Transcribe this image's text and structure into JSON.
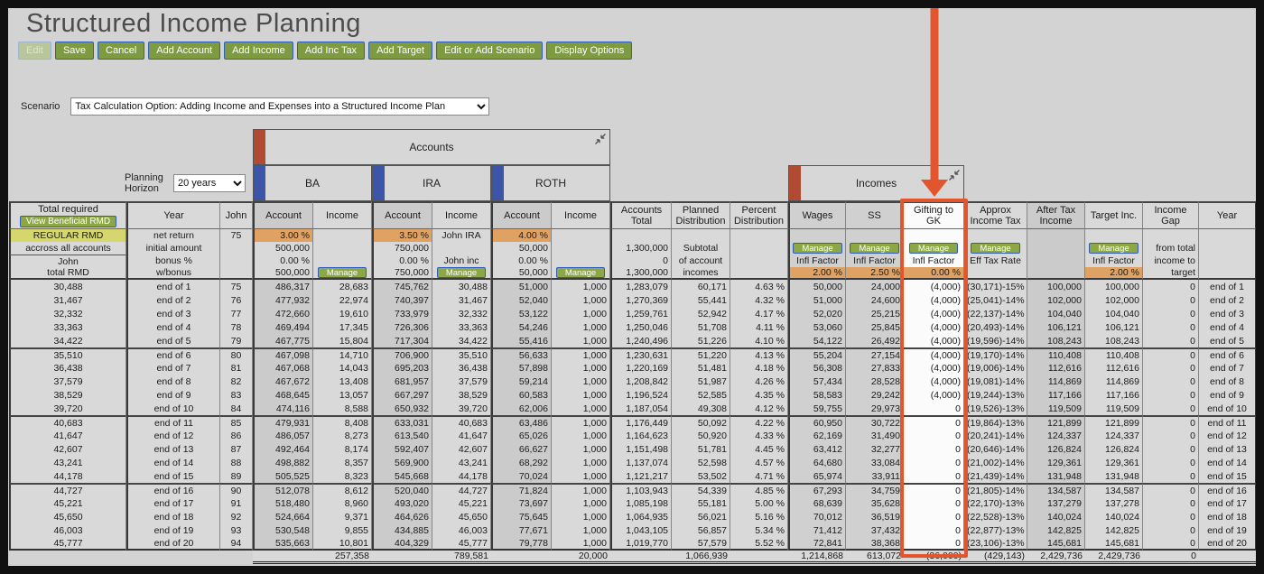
{
  "title": "Structured Income Planning",
  "toolbar": {
    "buttons": [
      {
        "label": "Edit",
        "disabled": true
      },
      {
        "label": "Save"
      },
      {
        "label": "Cancel"
      },
      {
        "label": "Add Account"
      },
      {
        "label": "Add Income"
      },
      {
        "label": "Add Inc Tax"
      },
      {
        "label": "Add Target"
      },
      {
        "label": "Edit or Add Scenario"
      },
      {
        "label": "Display Options"
      }
    ]
  },
  "scenario": {
    "label": "Scenario",
    "value": "Tax Calculation Option: Adding Income and Expenses into a Structured Income Plan"
  },
  "planning_horizon": {
    "label": "Planning Horizon",
    "value": "20 years"
  },
  "groups": {
    "accounts": "Accounts",
    "account_tabs": [
      "BA",
      "IRA",
      "ROTH"
    ],
    "incomes": "Incomes"
  },
  "colors": {
    "accent_green": "#7e9b42",
    "button_border_blue": "#2f5cb8",
    "highlight_orange": "#e2552d",
    "cell_orange": "#e0a263",
    "rmd_yellow": "#d6d66e",
    "tab_red": "#b04a33",
    "tab_blue": "#3d55a8"
  },
  "table": {
    "columns": [
      "rmd",
      "year",
      "age",
      "ba_acct",
      "ba_inc",
      "ira_acct",
      "ira_inc",
      "roth_acct",
      "roth_inc",
      "acct_total",
      "planned",
      "pct",
      "wages",
      "ss",
      "gift",
      "tax",
      "after_tax",
      "target",
      "gap",
      "year_end"
    ],
    "col_titles": {
      "rmd": "Total required",
      "year": "Year",
      "age": "John",
      "ba_acct": "Account",
      "ba_inc": "Income",
      "ira_acct": "Account",
      "ira_inc": "Income",
      "roth_acct": "Account",
      "roth_inc": "Income",
      "acct_total": "Accounts Total",
      "planned": "Planned Distribution",
      "pct": "Percent Distribution",
      "wages": "Wages",
      "ss": "SS",
      "gift": "Gifting to GK",
      "tax": "Approx Income Tax",
      "after_tax": "After Tax Income",
      "target": "Target Inc.",
      "gap": "Income Gap",
      "year_end": "Year"
    },
    "header": {
      "view_rmd_button": "View Beneficial RMD",
      "manage": "Manage",
      "s1": {
        "rmd": "REGULAR RMD",
        "year": "net return",
        "age": "75",
        "ba_acct": "3.00 %",
        "ira_acct": "3.50 %",
        "ira_inc": "John IRA",
        "roth_acct": "4.00 %"
      },
      "s2": {
        "rmd": "accross all accounts",
        "year": "initial amount",
        "ba_acct": "500,000",
        "ira_acct": "750,000",
        "roth_acct": "50,000",
        "acct_total": "1,300,000",
        "planned": "Subtotal",
        "gap": "from total"
      },
      "s3": {
        "rmd": "John",
        "year": "bonus %",
        "ba_acct": "0.00 %",
        "ira_acct": "0.00 %",
        "ira_inc": "John inc",
        "roth_acct": "0.00 %",
        "acct_total": "0",
        "planned": "of account",
        "wages": "Infl Factor",
        "ss": "Infl Factor",
        "gift": "Infl Factor",
        "tax": "Eff Tax Rate",
        "target": "Infl Factor",
        "gap": "income to"
      },
      "s4": {
        "rmd": "total RMD",
        "year": "w/bonus",
        "ba_acct": "500,000",
        "ira_acct": "750,000",
        "roth_acct": "50,000",
        "acct_total": "1,300,000",
        "planned": "incomes",
        "wages": "2.00 %",
        "ss": "2.50 %",
        "gift": "0.00 %",
        "target": "2.00 %",
        "gap": "target"
      }
    },
    "rows": [
      [
        "30,488",
        "end of 1",
        "75",
        "486,317",
        "28,683",
        "745,762",
        "30,488",
        "51,000",
        "1,000",
        "1,283,079",
        "60,171",
        "4.63 %",
        "50,000",
        "24,000",
        "(4,000)",
        "(30,171)-15%",
        "100,000",
        "100,000",
        "0",
        "end of 1"
      ],
      [
        "31,467",
        "end of 2",
        "76",
        "477,932",
        "22,974",
        "740,397",
        "31,467",
        "52,040",
        "1,000",
        "1,270,369",
        "55,441",
        "4.32 %",
        "51,000",
        "24,600",
        "(4,000)",
        "(25,041)-14%",
        "102,000",
        "102,000",
        "0",
        "end of 2"
      ],
      [
        "32,332",
        "end of 3",
        "77",
        "472,660",
        "19,610",
        "733,979",
        "32,332",
        "53,122",
        "1,000",
        "1,259,761",
        "52,942",
        "4.17 %",
        "52,020",
        "25,215",
        "(4,000)",
        "(22,137)-14%",
        "104,040",
        "104,040",
        "0",
        "end of 3"
      ],
      [
        "33,363",
        "end of 4",
        "78",
        "469,494",
        "17,345",
        "726,306",
        "33,363",
        "54,246",
        "1,000",
        "1,250,046",
        "51,708",
        "4.11 %",
        "53,060",
        "25,845",
        "(4,000)",
        "(20,493)-14%",
        "106,121",
        "106,121",
        "0",
        "end of 4"
      ],
      [
        "34,422",
        "end of 5",
        "79",
        "467,775",
        "15,804",
        "717,304",
        "34,422",
        "55,416",
        "1,000",
        "1,240,496",
        "51,226",
        "4.10 %",
        "54,122",
        "26,492",
        "(4,000)",
        "(19,596)-14%",
        "108,243",
        "108,243",
        "0",
        "end of 5"
      ],
      [
        "35,510",
        "end of 6",
        "80",
        "467,098",
        "14,710",
        "706,900",
        "35,510",
        "56,633",
        "1,000",
        "1,230,631",
        "51,220",
        "4.13 %",
        "55,204",
        "27,154",
        "(4,000)",
        "(19,170)-14%",
        "110,408",
        "110,408",
        "0",
        "end of 6"
      ],
      [
        "36,438",
        "end of 7",
        "81",
        "467,068",
        "14,043",
        "695,203",
        "36,438",
        "57,898",
        "1,000",
        "1,220,169",
        "51,481",
        "4.18 %",
        "56,308",
        "27,833",
        "(4,000)",
        "(19,006)-14%",
        "112,616",
        "112,616",
        "0",
        "end of 7"
      ],
      [
        "37,579",
        "end of 8",
        "82",
        "467,672",
        "13,408",
        "681,957",
        "37,579",
        "59,214",
        "1,000",
        "1,208,842",
        "51,987",
        "4.26 %",
        "57,434",
        "28,528",
        "(4,000)",
        "(19,081)-14%",
        "114,869",
        "114,869",
        "0",
        "end of 8"
      ],
      [
        "38,529",
        "end of 9",
        "83",
        "468,645",
        "13,057",
        "667,297",
        "38,529",
        "60,583",
        "1,000",
        "1,196,524",
        "52,585",
        "4.35 %",
        "58,583",
        "29,242",
        "(4,000)",
        "(19,244)-13%",
        "117,166",
        "117,166",
        "0",
        "end of 9"
      ],
      [
        "39,720",
        "end of 10",
        "84",
        "474,116",
        "8,588",
        "650,932",
        "39,720",
        "62,006",
        "1,000",
        "1,187,054",
        "49,308",
        "4.12 %",
        "59,755",
        "29,973",
        "0",
        "(19,526)-13%",
        "119,509",
        "119,509",
        "0",
        "end of 10"
      ],
      [
        "40,683",
        "end of 11",
        "85",
        "479,931",
        "8,408",
        "633,031",
        "40,683",
        "63,486",
        "1,000",
        "1,176,449",
        "50,092",
        "4.22 %",
        "60,950",
        "30,722",
        "0",
        "(19,864)-13%",
        "121,899",
        "121,899",
        "0",
        "end of 11"
      ],
      [
        "41,647",
        "end of 12",
        "86",
        "486,057",
        "8,273",
        "613,540",
        "41,647",
        "65,026",
        "1,000",
        "1,164,623",
        "50,920",
        "4.33 %",
        "62,169",
        "31,490",
        "0",
        "(20,241)-14%",
        "124,337",
        "124,337",
        "0",
        "end of 12"
      ],
      [
        "42,607",
        "end of 13",
        "87",
        "492,464",
        "8,174",
        "592,407",
        "42,607",
        "66,627",
        "1,000",
        "1,151,498",
        "51,781",
        "4.45 %",
        "63,412",
        "32,277",
        "0",
        "(20,646)-14%",
        "126,824",
        "126,824",
        "0",
        "end of 13"
      ],
      [
        "43,241",
        "end of 14",
        "88",
        "498,882",
        "8,357",
        "569,900",
        "43,241",
        "68,292",
        "1,000",
        "1,137,074",
        "52,598",
        "4.57 %",
        "64,680",
        "33,084",
        "0",
        "(21,002)-14%",
        "129,361",
        "129,361",
        "0",
        "end of 14"
      ],
      [
        "44,178",
        "end of 15",
        "89",
        "505,525",
        "8,323",
        "545,668",
        "44,178",
        "70,024",
        "1,000",
        "1,121,217",
        "53,502",
        "4.71 %",
        "65,974",
        "33,911",
        "0",
        "(21,439)-14%",
        "131,948",
        "131,948",
        "0",
        "end of 15"
      ],
      [
        "44,727",
        "end of 16",
        "90",
        "512,078",
        "8,612",
        "520,040",
        "44,727",
        "71,824",
        "1,000",
        "1,103,943",
        "54,339",
        "4.85 %",
        "67,293",
        "34,759",
        "0",
        "(21,805)-14%",
        "134,587",
        "134,587",
        "0",
        "end of 16"
      ],
      [
        "45,221",
        "end of 17",
        "91",
        "518,480",
        "8,960",
        "493,020",
        "45,221",
        "73,697",
        "1,000",
        "1,085,198",
        "55,181",
        "5.00 %",
        "68,639",
        "35,628",
        "0",
        "(22,170)-13%",
        "137,279",
        "137,278",
        "0",
        "end of 17"
      ],
      [
        "45,650",
        "end of 18",
        "92",
        "524,664",
        "9,371",
        "464,626",
        "45,650",
        "75,645",
        "1,000",
        "1,064,935",
        "56,021",
        "5.16 %",
        "70,012",
        "36,519",
        "0",
        "(22,528)-13%",
        "140,024",
        "140,024",
        "0",
        "end of 18"
      ],
      [
        "46,003",
        "end of 19",
        "93",
        "530,548",
        "9,855",
        "434,885",
        "46,003",
        "77,671",
        "1,000",
        "1,043,105",
        "56,857",
        "5.34 %",
        "71,412",
        "37,432",
        "0",
        "(22,877)-13%",
        "142,825",
        "142,825",
        "0",
        "end of 19"
      ],
      [
        "45,777",
        "end of 20",
        "94",
        "535,663",
        "10,801",
        "404,329",
        "45,777",
        "79,778",
        "1,000",
        "1,019,770",
        "57,579",
        "5.52 %",
        "72,841",
        "38,368",
        "0",
        "(23,106)-13%",
        "145,681",
        "145,681",
        "0",
        "end of 20"
      ]
    ],
    "totals": {
      "ba_inc": "257,358",
      "ira_inc": "789,581",
      "roth_inc": "20,000",
      "planned": "1,066,939",
      "wages": "1,214,868",
      "ss": "613,072",
      "gift": "(36,000)",
      "tax": "(429,143)",
      "after_tax": "2,429,736",
      "target": "2,429,736",
      "gap": "0"
    }
  }
}
